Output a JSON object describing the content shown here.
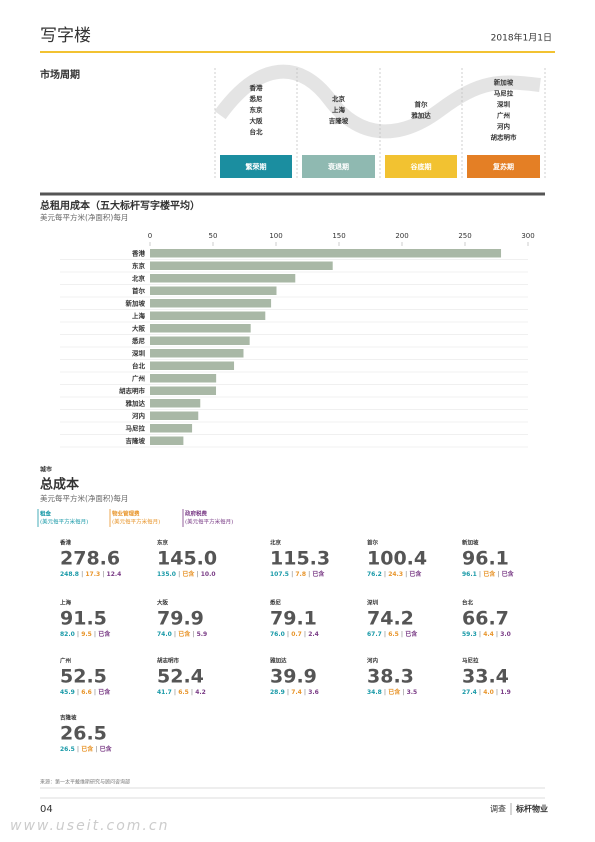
{
  "header": {
    "title": "写字楼",
    "date": "2018年1月1日"
  },
  "market_cycle": {
    "title": "市场周期",
    "phases": [
      {
        "label": "繁荣期",
        "color": "#1b8ea0",
        "cities": [
          "香港",
          "悉尼",
          "东京",
          "大阪",
          "台北"
        ]
      },
      {
        "label": "衰退期",
        "color": "#8fb9b1",
        "cities": [
          "北京",
          "上海",
          "吉隆坡"
        ]
      },
      {
        "label": "谷底期",
        "color": "#f2c231",
        "cities": [
          "首尔",
          "雅加达"
        ]
      },
      {
        "label": "复苏期",
        "color": "#e47f25",
        "cities": [
          "新加坡",
          "马尼拉",
          "深圳",
          "广州",
          "河内",
          "胡志明市"
        ]
      }
    ]
  },
  "chart_data": {
    "type": "bar",
    "orientation": "horizontal",
    "title": "总租用成本（五大标杆写字楼平均）",
    "subtitle": "美元每平方米(净面积)每月",
    "categories": [
      "香港",
      "东京",
      "北京",
      "首尔",
      "新加坡",
      "上海",
      "大阪",
      "悉尼",
      "深圳",
      "台北",
      "广州",
      "胡志明市",
      "雅加达",
      "河内",
      "马尼拉",
      "吉隆坡"
    ],
    "values": [
      278.6,
      145.0,
      115.3,
      100.4,
      96.1,
      91.5,
      79.9,
      79.1,
      74.2,
      66.7,
      52.5,
      52.4,
      39.9,
      38.3,
      33.4,
      26.5
    ],
    "color": "#a9b8a6",
    "xlim": [
      0,
      300
    ],
    "xticks": [
      0,
      50,
      100,
      150,
      200,
      250,
      300
    ]
  },
  "total_cost": {
    "kicker": "城市",
    "title": "总成本",
    "subtitle": "美元每平方米(净面积)每月",
    "legend": [
      {
        "label": "租金",
        "unit": "(美元每平方米每月)",
        "color": "#1a9aa8"
      },
      {
        "label": "物业管理费",
        "unit": "(美元每平方米每月)",
        "color": "#e8952b"
      },
      {
        "label": "政府税费",
        "unit": "(美元每平方米每月)",
        "color": "#7a3c86"
      }
    ],
    "cities": [
      {
        "name": "香港",
        "total": "278.6",
        "parts": [
          "248.8",
          "17.3",
          "12.4"
        ]
      },
      {
        "name": "东京",
        "total": "145.0",
        "parts": [
          "135.0",
          "已含",
          "10.0"
        ]
      },
      {
        "name": "北京",
        "total": "115.3",
        "parts": [
          "107.5",
          "7.8",
          "已含"
        ]
      },
      {
        "name": "首尔",
        "total": "100.4",
        "parts": [
          "76.2",
          "24.3",
          "已含"
        ]
      },
      {
        "name": "新加坡",
        "total": "96.1",
        "parts": [
          "96.1",
          "已含",
          "已含"
        ]
      },
      {
        "name": "上海",
        "total": "91.5",
        "parts": [
          "82.0",
          "9.5",
          "已含"
        ]
      },
      {
        "name": "大阪",
        "total": "79.9",
        "parts": [
          "74.0",
          "已含",
          "5.9"
        ]
      },
      {
        "name": "悉尼",
        "total": "79.1",
        "parts": [
          "76.0",
          "0.7",
          "2.4"
        ]
      },
      {
        "name": "深圳",
        "total": "74.2",
        "parts": [
          "67.7",
          "6.5",
          "已含"
        ]
      },
      {
        "name": "台北",
        "total": "66.7",
        "parts": [
          "59.3",
          "4.4",
          "3.0"
        ]
      },
      {
        "name": "广州",
        "total": "52.5",
        "parts": [
          "45.9",
          "6.6",
          "已含"
        ]
      },
      {
        "name": "胡志明市",
        "total": "52.4",
        "parts": [
          "41.7",
          "6.5",
          "4.2"
        ]
      },
      {
        "name": "雅加达",
        "total": "39.9",
        "parts": [
          "28.9",
          "7.4",
          "3.6"
        ]
      },
      {
        "name": "河内",
        "total": "38.3",
        "parts": [
          "34.8",
          "已含",
          "3.5"
        ]
      },
      {
        "name": "马尼拉",
        "total": "33.4",
        "parts": [
          "27.4",
          "4.0",
          "1.9"
        ]
      },
      {
        "name": "吉隆坡",
        "total": "26.5",
        "parts": [
          "26.5",
          "已含",
          "已含"
        ]
      }
    ]
  },
  "source": "来源：第一太平戴维斯研究与顾问咨询部",
  "footer": {
    "page": "04",
    "section": "调查",
    "brand": "标杆物业",
    "watermark": "www.useit.com.cn"
  }
}
